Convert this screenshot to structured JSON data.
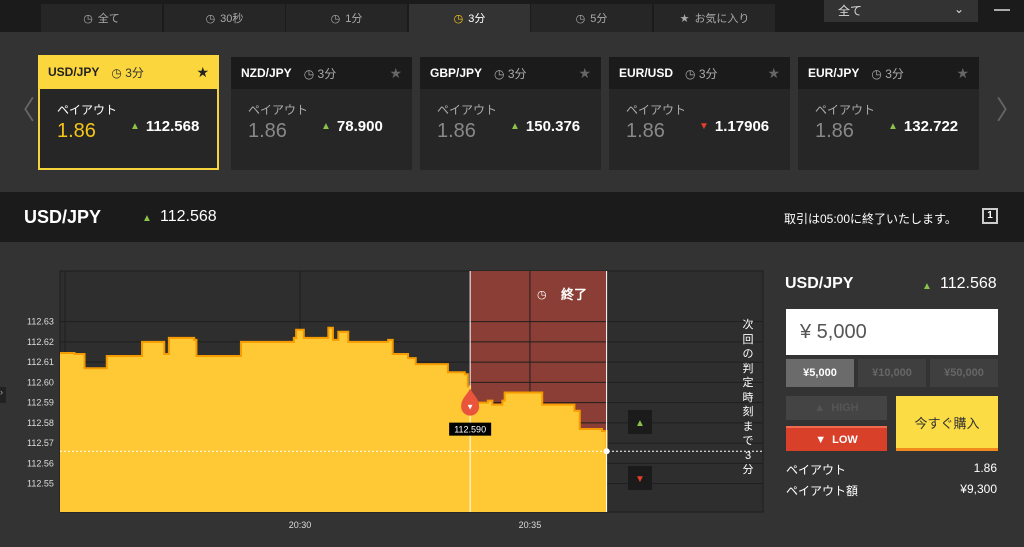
{
  "tabs": [
    {
      "label": "全て",
      "icon": "clock-icon"
    },
    {
      "label": "30秒",
      "icon": "clock-icon"
    },
    {
      "label": "1分",
      "icon": "clock-icon"
    },
    {
      "label": "3分",
      "icon": "clock-icon",
      "active": true
    },
    {
      "label": "5分",
      "icon": "clock-icon"
    },
    {
      "label": "お気に入り",
      "icon": "star-icon"
    }
  ],
  "filter": {
    "selected": "全て"
  },
  "cards": [
    {
      "pair": "USD/JPY",
      "time": "3分",
      "payout_label": "ペイアウト",
      "payout": "1.86",
      "direction": "up",
      "price": "112.568",
      "active": true
    },
    {
      "pair": "NZD/JPY",
      "time": "3分",
      "payout_label": "ペイアウト",
      "payout": "1.86",
      "direction": "up",
      "price": "78.900"
    },
    {
      "pair": "GBP/JPY",
      "time": "3分",
      "payout_label": "ペイアウト",
      "payout": "1.86",
      "direction": "up",
      "price": "150.376"
    },
    {
      "pair": "EUR/USD",
      "time": "3分",
      "payout_label": "ペイアウト",
      "payout": "1.86",
      "direction": "down",
      "price": "1.17906"
    },
    {
      "pair": "EUR/JPY",
      "time": "3分",
      "payout_label": "ペイアウト",
      "payout": "1.86",
      "direction": "up",
      "price": "132.722"
    }
  ],
  "header": {
    "pair": "USD/JPY",
    "price": "112.568",
    "notice": "取引は05:00に終了いたします。",
    "window_icon_label": "1"
  },
  "chart_data": {
    "type": "area",
    "ylim": [
      112.536,
      112.655
    ],
    "xlim": [
      "20:24:47",
      "20:40:04"
    ],
    "yticks": [
      "112.63",
      "112.62",
      "112.61",
      "112.60",
      "112.59",
      "112.58",
      "112.57",
      "112.56",
      "112.55"
    ],
    "xticks": [
      "20:30",
      "20:35"
    ],
    "grid": true,
    "x": [
      "20:24:47",
      "20:25:06",
      "20:25:19",
      "20:25:45",
      "20:25:48",
      "20:26:14",
      "20:26:34",
      "20:27:00",
      "20:27:03",
      "20:27:09",
      "20:27:42",
      "20:27:45",
      "20:28:14",
      "20:28:40",
      "20:28:43",
      "20:29:26",
      "20:29:52",
      "20:29:55",
      "20:30:05",
      "20:30:34",
      "20:30:37",
      "20:30:43",
      "20:30:50",
      "20:31:03",
      "20:31:48",
      "20:31:55",
      "20:32:01",
      "20:32:21",
      "20:32:31",
      "20:33:06",
      "20:33:13",
      "20:33:35",
      "20:33:39",
      "20:33:42",
      "20:34:05",
      "20:34:11",
      "20:34:24",
      "20:34:27",
      "20:35:10",
      "20:35:16",
      "20:35:49",
      "20:35:58",
      "20:36:05",
      "20:36:34",
      "20:36:40"
    ],
    "y": [
      112.6145,
      112.614,
      112.607,
      112.607,
      112.613,
      112.613,
      112.62,
      112.62,
      112.614,
      112.622,
      112.621,
      112.613,
      112.613,
      112.613,
      112.62,
      112.62,
      112.622,
      112.626,
      112.622,
      112.622,
      112.627,
      112.621,
      112.625,
      112.62,
      112.62,
      112.621,
      112.614,
      112.612,
      112.609,
      112.609,
      112.605,
      112.604,
      112.598,
      112.59,
      112.591,
      112.589,
      112.591,
      112.595,
      112.595,
      112.589,
      112.589,
      112.586,
      112.577,
      112.576,
      112.566
    ],
    "entry": {
      "time": "20:33:42",
      "price": 112.59,
      "label": "112.590",
      "direction": "down"
    },
    "expiry": {
      "time": "20:36:40",
      "label": "終了"
    },
    "current_price": 112.566,
    "side_text": "次回の判定時刻まで3分",
    "colors": {
      "area": "#fec934",
      "line": "#f59b00",
      "expiry_zone": "#8b3e35",
      "grid": "#1e1e1e"
    }
  },
  "trade": {
    "pair": "USD/JPY",
    "price": "112.568",
    "amount": "¥ 5,000",
    "presets": [
      "¥5,000",
      "¥10,000",
      "¥50,000"
    ],
    "high_label": "HIGH",
    "low_label": "LOW",
    "buy_label": "今すぐ購入",
    "payout_label": "ペイアウト",
    "payout": "1.86",
    "payout_amount_label": "ペイアウト額",
    "payout_amount": "¥9,300"
  },
  "colors": {
    "accent": "#fbd63c",
    "up": "#8bc34a",
    "down": "#e53e2a"
  }
}
